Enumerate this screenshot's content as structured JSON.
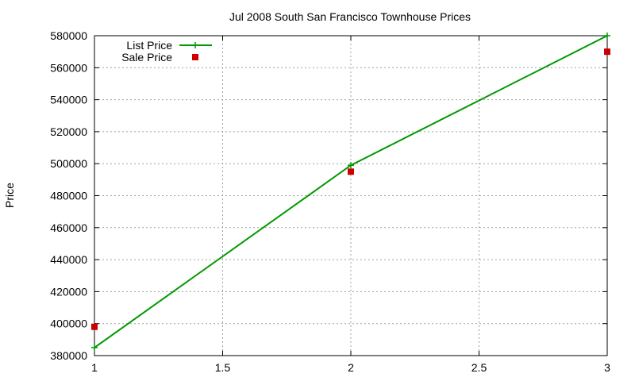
{
  "chart_data": {
    "type": "line",
    "title": "Jul 2008 South San Francisco Townhouse Prices",
    "xlabel": "",
    "ylabel": "Price",
    "xlim": [
      1,
      3
    ],
    "ylim": [
      380000,
      580000
    ],
    "xticks": [
      1,
      1.5,
      2,
      2.5,
      3
    ],
    "yticks": [
      380000,
      400000,
      420000,
      440000,
      460000,
      480000,
      500000,
      520000,
      540000,
      560000,
      580000
    ],
    "grid": true,
    "legend_position": "top-left",
    "series": [
      {
        "name": "List Price",
        "style": "linespoints",
        "color": "#009900",
        "marker": "plus",
        "x": [
          1,
          2,
          3
        ],
        "y": [
          385000,
          499000,
          580000
        ]
      },
      {
        "name": "Sale Price",
        "style": "points",
        "color": "#cc0000",
        "marker": "square",
        "x": [
          1,
          2,
          3
        ],
        "y": [
          398000,
          495000,
          570000
        ]
      }
    ]
  }
}
